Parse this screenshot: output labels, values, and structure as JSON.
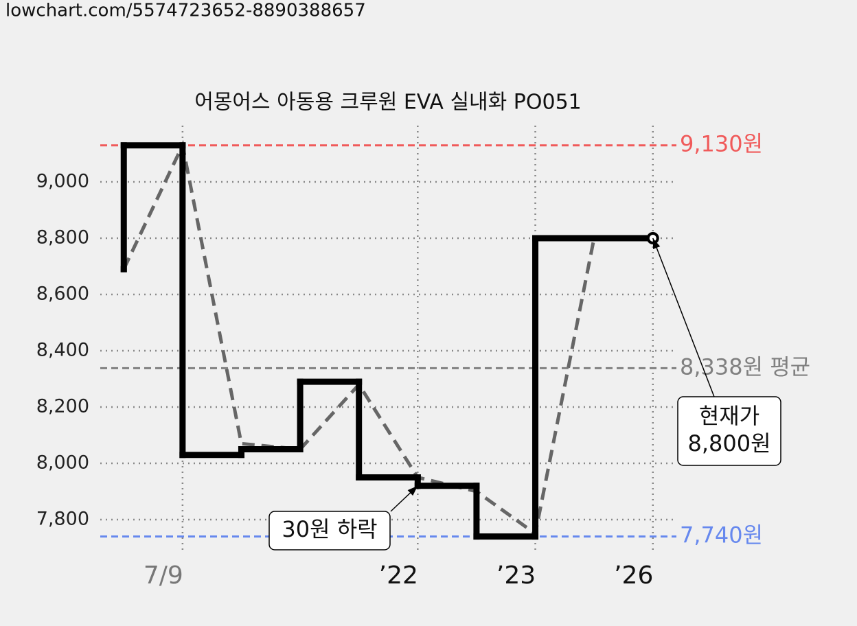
{
  "header": {
    "url": "lowchart.com/5574723652-8890388657"
  },
  "chart_data": {
    "type": "step-line",
    "title": "어몽어스 아동용 크루원 EVA 실내화 PO051",
    "xlim": [
      -0.4,
      9.4
    ],
    "xticks": [
      {
        "value": 1,
        "label": "7/9",
        "color": "#777777"
      },
      {
        "value": 5,
        "label": "’22",
        "color": "#111111"
      },
      {
        "value": 7,
        "label": "’23",
        "color": "#111111"
      },
      {
        "value": 9,
        "label": "’26",
        "color": "#111111"
      }
    ],
    "ylim": [
      7700,
      9200
    ],
    "yticks": [
      {
        "value": 7800,
        "label": "7,800"
      },
      {
        "value": 8000,
        "label": "8,000"
      },
      {
        "value": 8200,
        "label": "8,200"
      },
      {
        "value": 8400,
        "label": "8,400"
      },
      {
        "value": 8600,
        "label": "8,600"
      },
      {
        "value": 8800,
        "label": "8,800"
      },
      {
        "value": 9000,
        "label": "9,000"
      }
    ],
    "grid": true,
    "series": [
      {
        "style": "step",
        "color": "#000000",
        "x": [
          0,
          0,
          1,
          2,
          3,
          4,
          5,
          6,
          7,
          9
        ],
        "values": [
          8690,
          9130,
          8030,
          8050,
          8290,
          7950,
          7920,
          7740,
          8800,
          8800
        ]
      },
      {
        "style": "dashed",
        "color": "#666666",
        "x": [
          0,
          1,
          2,
          3,
          4,
          5,
          6,
          7,
          8,
          9
        ],
        "values": [
          8690,
          9130,
          8070,
          8050,
          8280,
          7950,
          7900,
          7750,
          8800,
          8800
        ]
      }
    ],
    "reference_lines": [
      {
        "value": 9130,
        "label": "9,130원",
        "color": "#f05a5a"
      },
      {
        "value": 8338,
        "label": "8,338원 평균",
        "color": "#808080"
      },
      {
        "value": 7740,
        "label": "7,740원",
        "color": "#6688ee"
      }
    ],
    "annotations": [
      {
        "lines": [
          "30원 하락"
        ],
        "x": 5,
        "y": 7920
      },
      {
        "lines": [
          "현재가",
          "8,800원"
        ],
        "x": 9,
        "y": 8800
      }
    ]
  }
}
